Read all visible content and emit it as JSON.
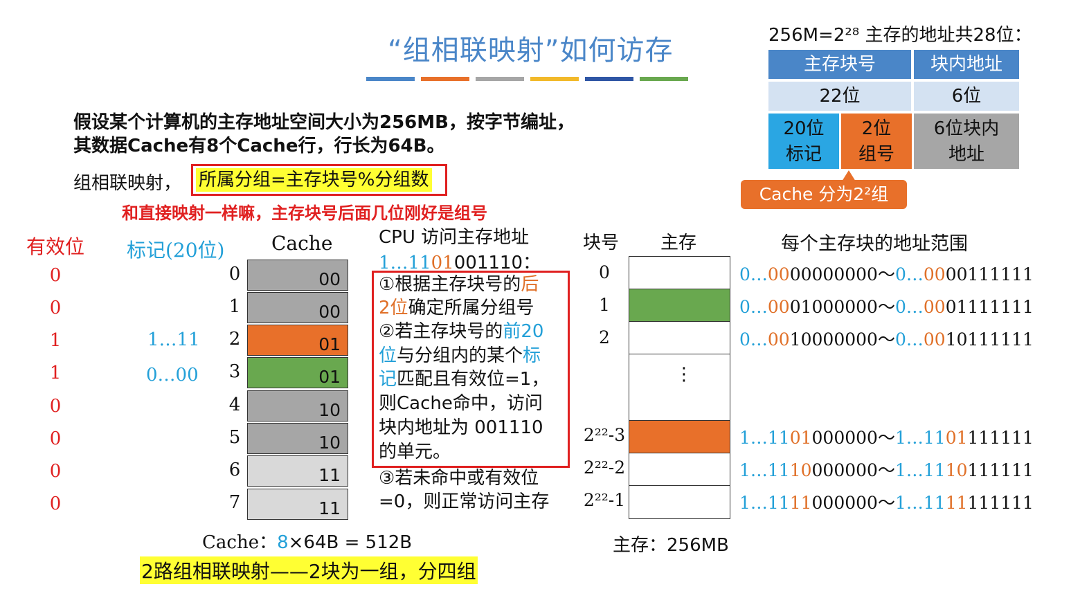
{
  "title": "“组相联映射”如何访存",
  "title_bars": [
    "#4a86c8",
    "#e8702a",
    "#a6a6a6",
    "#f2b92a",
    "#2f56a5",
    "#69a84f"
  ],
  "intro": "假设某个计算机的主存地址空间大小为256MB，按字节编址，其数据Cache有8个Cache行，行长为64B。",
  "rule": {
    "label": "组相联映射，",
    "formula": "所属分组=主存块号%分组数"
  },
  "red_note": "和直接映射一样嘛，主存块号后面几位刚好是组号",
  "cache_table": {
    "valid_header": "有效位",
    "tag_header": "标记(20位)",
    "cache_header": "Cache",
    "rows": [
      {
        "no": "0",
        "valid": "0",
        "tag": "",
        "bits": "00",
        "color": "#a6a6a6"
      },
      {
        "no": "1",
        "valid": "0",
        "tag": "",
        "bits": "00",
        "color": "#a6a6a6"
      },
      {
        "no": "2",
        "valid": "1",
        "tag": "1…11",
        "bits": "01",
        "color": "#e8702a"
      },
      {
        "no": "3",
        "valid": "1",
        "tag": "0…00",
        "bits": "01",
        "color": "#69a84f"
      },
      {
        "no": "4",
        "valid": "0",
        "tag": "",
        "bits": "10",
        "color": "#a6a6a6"
      },
      {
        "no": "5",
        "valid": "0",
        "tag": "",
        "bits": "10",
        "color": "#a6a6a6"
      },
      {
        "no": "6",
        "valid": "0",
        "tag": "",
        "bits": "11",
        "color": "#d9d9d9"
      },
      {
        "no": "7",
        "valid": "0",
        "tag": "",
        "bits": "11",
        "color": "#d9d9d9"
      }
    ],
    "caption_prefix": "Cache：",
    "caption_count": "8",
    "caption_rest": "×64B = 512B"
  },
  "ways_note": "2路组相联映射——2块为一组，分四组",
  "cpu": {
    "title": "CPU 访问主存地址",
    "addr_tag": "1…11",
    "addr_group": "01",
    "addr_offset": "001110：",
    "step1_a": "①根据主存块号的",
    "step1_b": "后",
    "step1_c": "2位",
    "step1_d": "确定所属分组号",
    "step2_a": "②若主存块号的",
    "step2_b": "前20",
    "step2_c": "位",
    "step2_d": "与分组内的某个",
    "step2_e": "标",
    "step2_f": "记",
    "step2_g": "匹配且有效位=1，",
    "step2_h": "则Cache命中，访问",
    "step2_i": "块内地址为 001110",
    "step2_j": "的单元。",
    "step3_a": "③若未命中或有效位",
    "step3_b": "=0，则正常访问主存"
  },
  "memory": {
    "block_header": "块号",
    "mem_header": "主存",
    "blocks": [
      {
        "label": "0",
        "color": "#ffffff"
      },
      {
        "label": "1",
        "color": "#69a84f"
      },
      {
        "label": "2",
        "color": "#ffffff"
      },
      {
        "label": "2²²-3",
        "color": "#e8702a"
      },
      {
        "label": "2²²-2",
        "color": "#ffffff"
      },
      {
        "label": "2²²-1",
        "color": "#ffffff"
      }
    ],
    "dots": "⋮",
    "caption": "主存：256MB"
  },
  "ranges": {
    "header": "每个主存块的地址范围",
    "rows": [
      {
        "a_pre": "0…",
        "a_grp": "00",
        "a_rest": "00000000",
        "b_pre": "0…",
        "b_grp": "00",
        "b_rest": "00111111"
      },
      {
        "a_pre": "0…",
        "a_grp": "00",
        "a_rest": "01000000",
        "b_pre": "0…",
        "b_grp": "00",
        "b_rest": "01111111"
      },
      {
        "a_pre": "0…",
        "a_grp": "00",
        "a_rest": "10000000",
        "b_pre": "0…",
        "b_grp": "00",
        "b_rest": "10111111"
      },
      {
        "a_pre": "1…11",
        "a_grp": "01",
        "a_rest": "000000",
        "b_pre": "1…11",
        "b_grp": "01",
        "b_rest": "111111"
      },
      {
        "a_pre": "1…11",
        "a_grp": "10",
        "a_rest": "000000",
        "b_pre": "1…11",
        "b_grp": "10",
        "b_rest": "111111"
      },
      {
        "a_pre": "1…11",
        "a_grp": "11",
        "a_rest": "000000",
        "b_pre": "1…11",
        "b_grp": "11",
        "b_rest": "111111"
      }
    ],
    "tilde": "～"
  },
  "format": {
    "title": "256M=2²⁸ 主存的地址共28位：",
    "h1": "主存块号",
    "h2": "块内地址",
    "w1": "22位",
    "w2": "6位",
    "f1": "20位\n标记",
    "f2": "2位\n组号",
    "f3": "6位块内\n地址",
    "groups_note": "Cache 分为2²组"
  }
}
